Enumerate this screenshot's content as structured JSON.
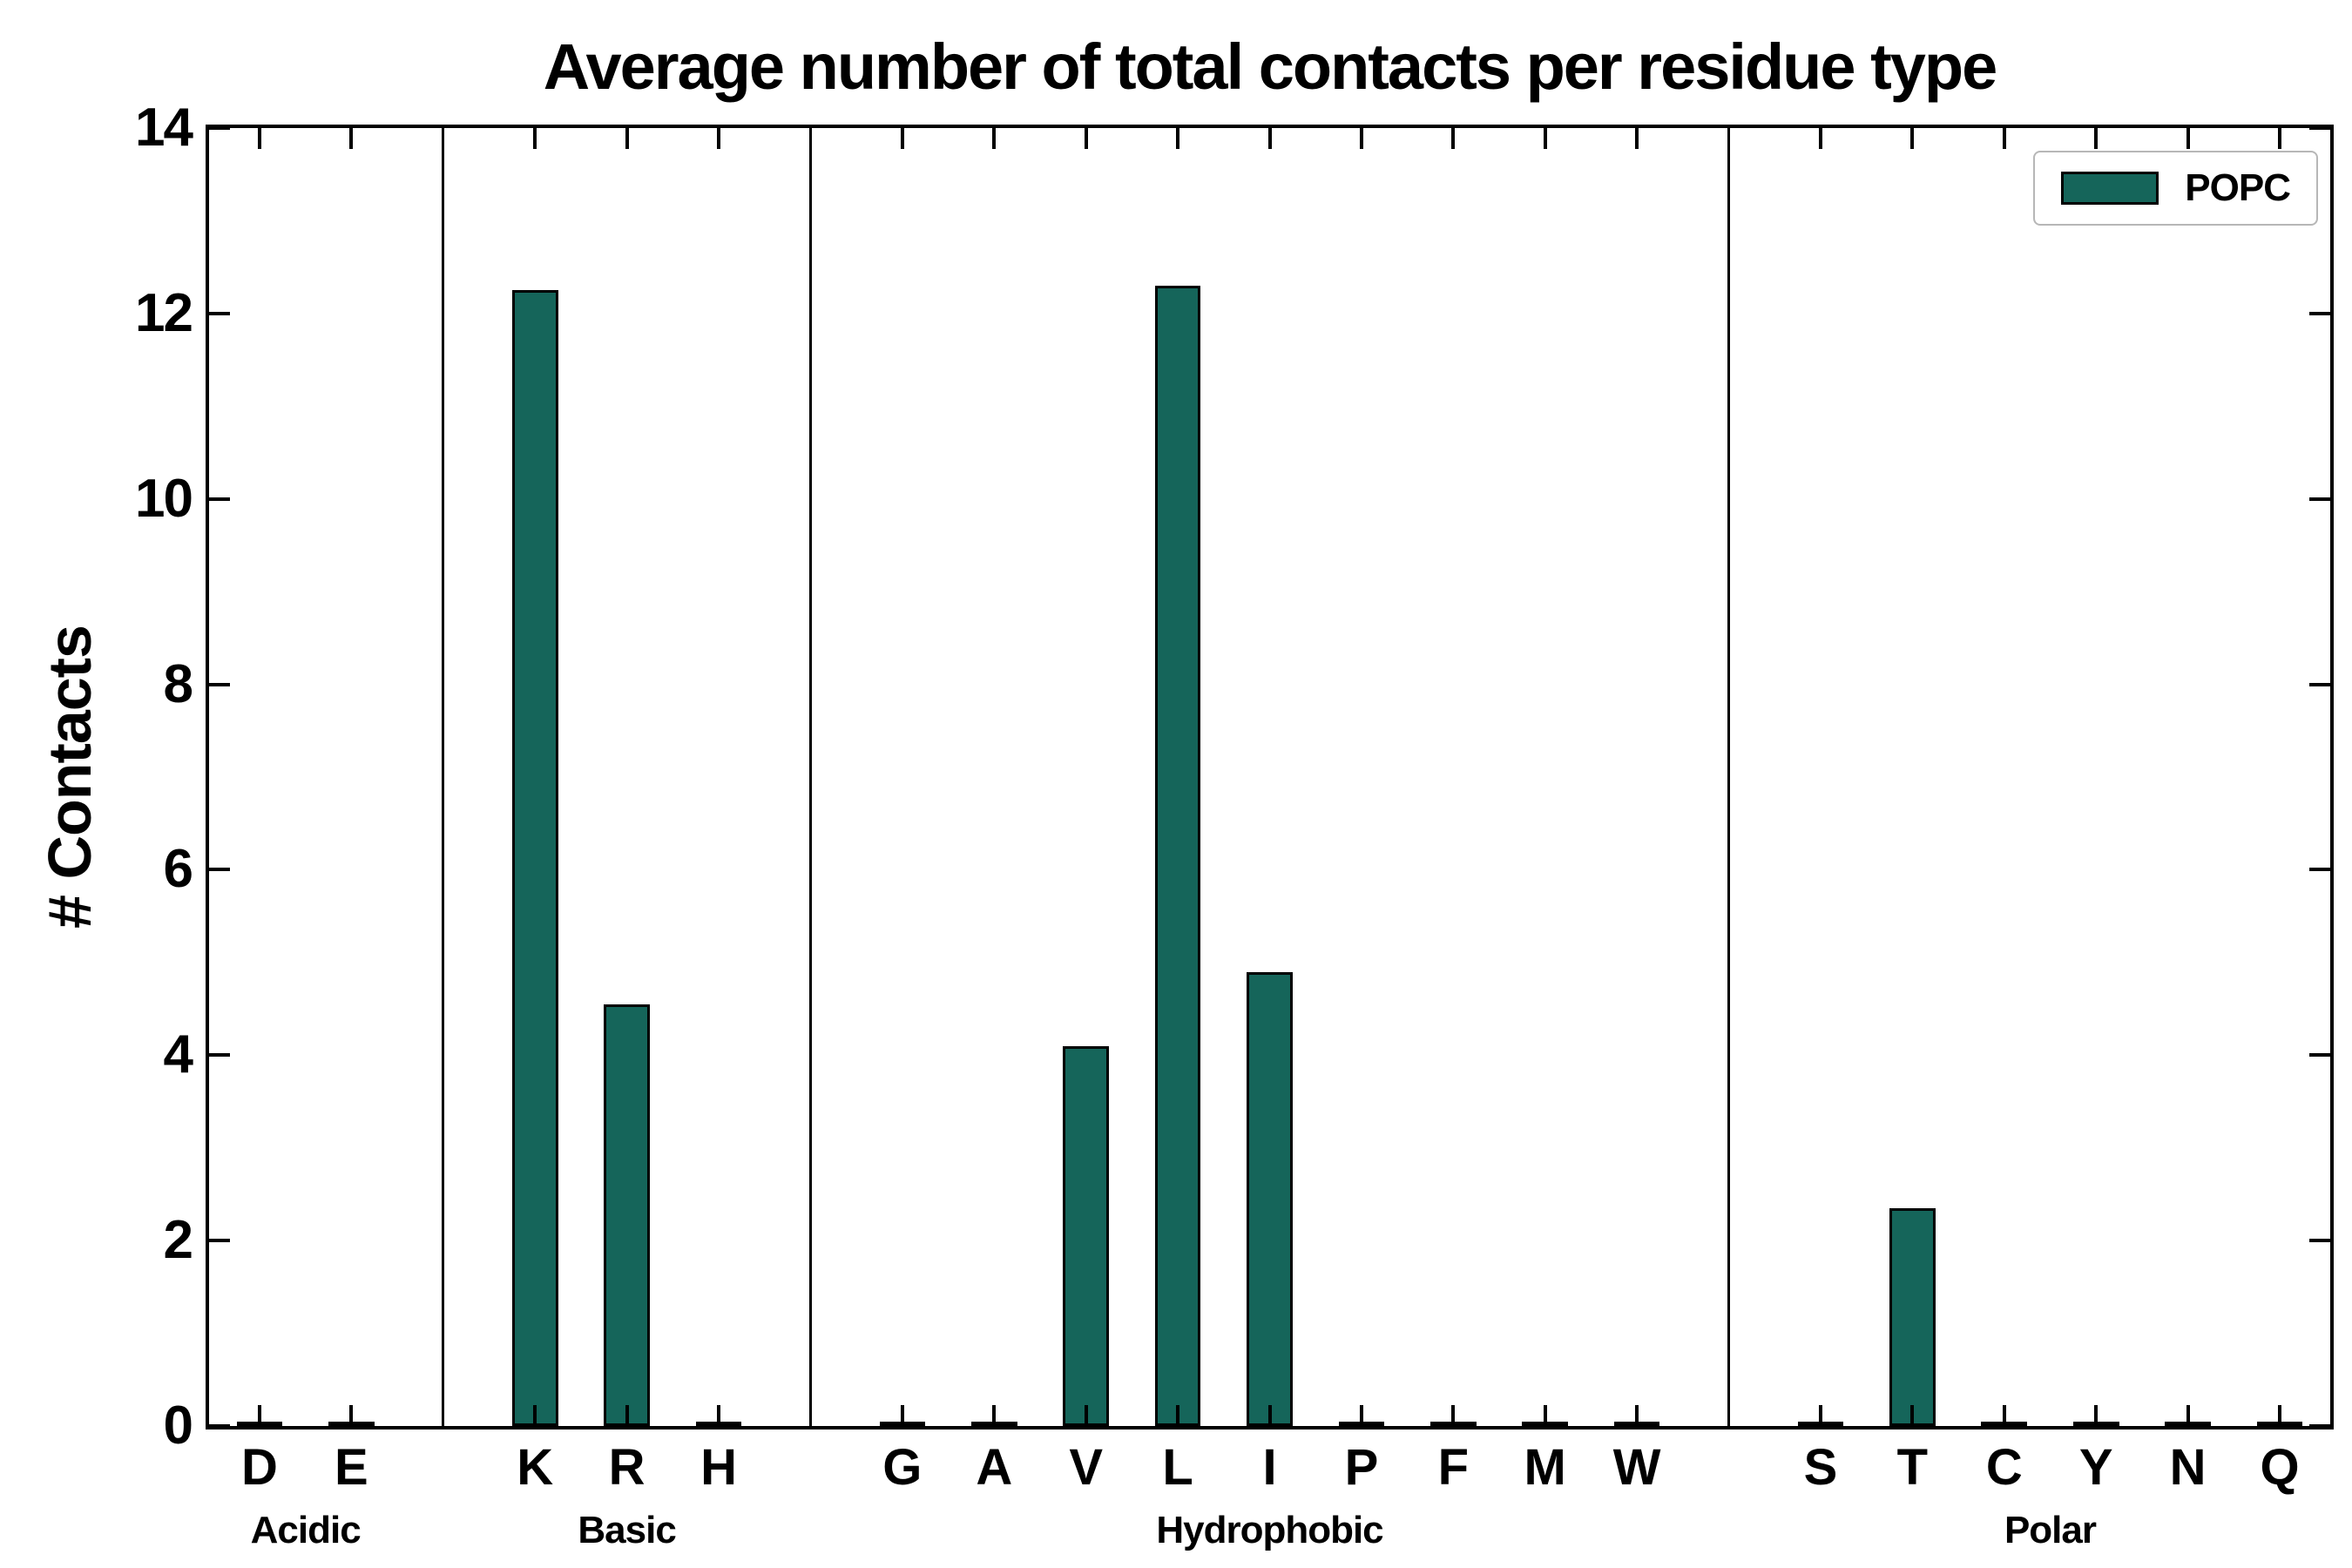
{
  "chart_data": {
    "type": "bar",
    "title": "Average number of total contacts per residue type",
    "xlabel": "",
    "ylabel": "# Contacts",
    "ylim": [
      0,
      14
    ],
    "yticks": [
      0,
      2,
      4,
      6,
      8,
      10,
      12,
      14
    ],
    "grid": false,
    "legend": {
      "label": "POPC",
      "position": "upper right"
    },
    "bar_color": "#15655a",
    "bar_edge_color": "#000000",
    "axis_color": "#000000",
    "background_color": "#ffffff",
    "groups": [
      {
        "label": "Acidic",
        "categories": [
          "D",
          "E"
        ],
        "values": [
          0.0,
          0.0
        ]
      },
      {
        "label": "Basic",
        "categories": [
          "K",
          "R",
          "H"
        ],
        "values": [
          12.25,
          4.55,
          0.0
        ]
      },
      {
        "label": "Hydrophobic",
        "categories": [
          "G",
          "A",
          "V",
          "L",
          "I",
          "P",
          "F",
          "M",
          "W"
        ],
        "values": [
          0.0,
          0.0,
          4.1,
          12.3,
          4.9,
          0.0,
          0.0,
          0.0,
          0.0
        ]
      },
      {
        "label": "Polar",
        "categories": [
          "S",
          "T",
          "C",
          "Y",
          "N",
          "Q"
        ],
        "values": [
          0.0,
          2.35,
          0.0,
          0.0,
          0.0,
          0.0
        ]
      }
    ]
  }
}
